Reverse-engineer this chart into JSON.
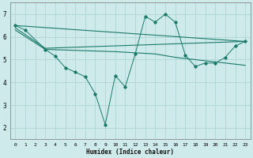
{
  "background_color": "#ceeaea",
  "grid_color": "#afd4d4",
  "line_color": "#1a7a6a",
  "xlabel": "Humidex (Indice chaleur)",
  "xlim": [
    -0.5,
    23.5
  ],
  "ylim": [
    1.5,
    7.5
  ],
  "yticks": [
    2,
    3,
    4,
    5,
    6,
    7
  ],
  "xticks": [
    0,
    1,
    2,
    3,
    4,
    5,
    6,
    7,
    8,
    9,
    10,
    11,
    12,
    13,
    14,
    15,
    16,
    17,
    18,
    19,
    20,
    21,
    22,
    23
  ],
  "line_smooth1": {
    "x": [
      0,
      23
    ],
    "y": [
      6.5,
      5.8
    ]
  },
  "line_smooth2": {
    "x": [
      0,
      3,
      23
    ],
    "y": [
      6.4,
      5.5,
      5.8
    ]
  },
  "line_smooth3": {
    "x": [
      0,
      3,
      10,
      12,
      14,
      16,
      17,
      19,
      21,
      22,
      23
    ],
    "y": [
      6.3,
      5.45,
      5.35,
      5.3,
      5.25,
      5.1,
      5.05,
      4.95,
      4.85,
      4.8,
      4.75
    ]
  },
  "line_jagged": {
    "x": [
      0,
      1,
      3,
      4,
      5,
      6,
      7,
      8,
      9,
      10,
      11,
      12,
      13,
      14,
      15,
      16,
      17,
      18,
      19,
      20,
      21,
      22,
      23
    ],
    "y": [
      6.5,
      6.3,
      5.45,
      5.15,
      4.65,
      4.45,
      4.25,
      3.5,
      2.15,
      4.3,
      3.8,
      5.25,
      6.9,
      6.65,
      7.0,
      6.65,
      5.2,
      4.7,
      4.85,
      4.85,
      5.1,
      5.6,
      5.8
    ]
  }
}
